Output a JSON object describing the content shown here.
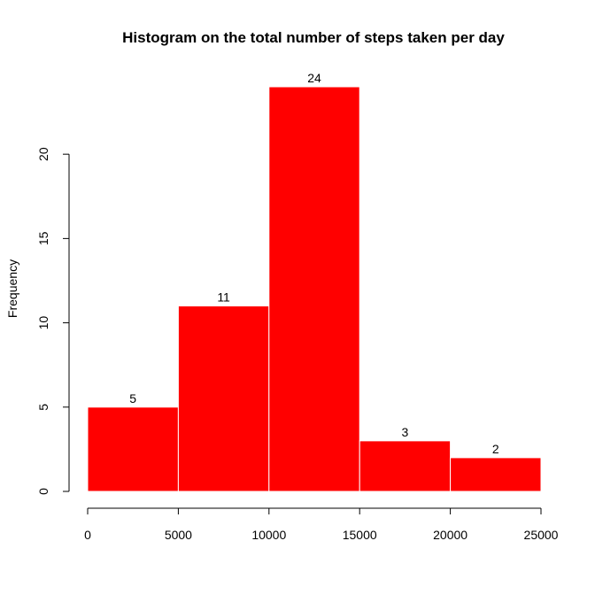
{
  "chart_data": {
    "type": "bar",
    "title": "Histogram on the total number of steps taken per day",
    "xlabel": "",
    "ylabel": "Frequency",
    "bins": [
      {
        "start": 0,
        "end": 5000,
        "value": 5
      },
      {
        "start": 5000,
        "end": 10000,
        "value": 11
      },
      {
        "start": 10000,
        "end": 15000,
        "value": 24
      },
      {
        "start": 15000,
        "end": 20000,
        "value": 3
      },
      {
        "start": 20000,
        "end": 25000,
        "value": 2
      }
    ],
    "data_labels": [
      "5",
      "11",
      "24",
      "3",
      "2"
    ],
    "xticks": [
      0,
      5000,
      10000,
      15000,
      20000,
      25000
    ],
    "xtick_labels": [
      "0",
      "5000",
      "10000",
      "15000",
      "20000",
      "25000"
    ],
    "yticks": [
      0,
      5,
      10,
      15,
      20
    ],
    "ytick_labels": [
      "0",
      "5",
      "10",
      "15",
      "20"
    ],
    "xlim": [
      0,
      25000
    ],
    "ylim": [
      0,
      24
    ],
    "grid": false,
    "legend": "none",
    "bar_color": "#ff0000",
    "bar_border_color": "#ffffff"
  }
}
